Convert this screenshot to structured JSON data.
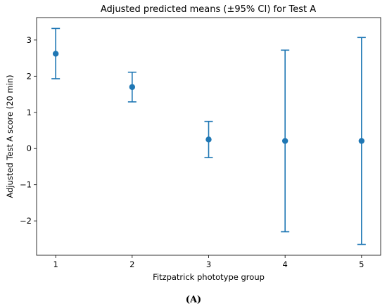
{
  "chart_data": {
    "type": "errorbar",
    "title": "Adjusted predicted means (±95% CI) for Test A",
    "xlabel": "Fitzpatrick phototype group",
    "ylabel": "Adjusted Test A score (20 min)",
    "x": [
      1,
      2,
      3,
      4,
      5
    ],
    "y": [
      2.62,
      1.7,
      0.25,
      0.21,
      0.21
    ],
    "ci_lower": [
      1.93,
      1.29,
      -0.25,
      -2.3,
      -2.65
    ],
    "ci_upper": [
      3.32,
      2.11,
      0.75,
      2.72,
      3.07
    ],
    "xticks": [
      1,
      2,
      3,
      4,
      5
    ],
    "yticks": [
      -2,
      -1,
      0,
      1,
      2,
      3
    ],
    "ytick_labels": [
      "−2",
      "−1",
      "0",
      "1",
      "2",
      "3"
    ],
    "xlim": [
      0.75,
      5.25
    ],
    "ylim": [
      -2.95,
      3.62
    ],
    "grid": false,
    "color": "#1f77b4"
  },
  "caption": "(A)"
}
